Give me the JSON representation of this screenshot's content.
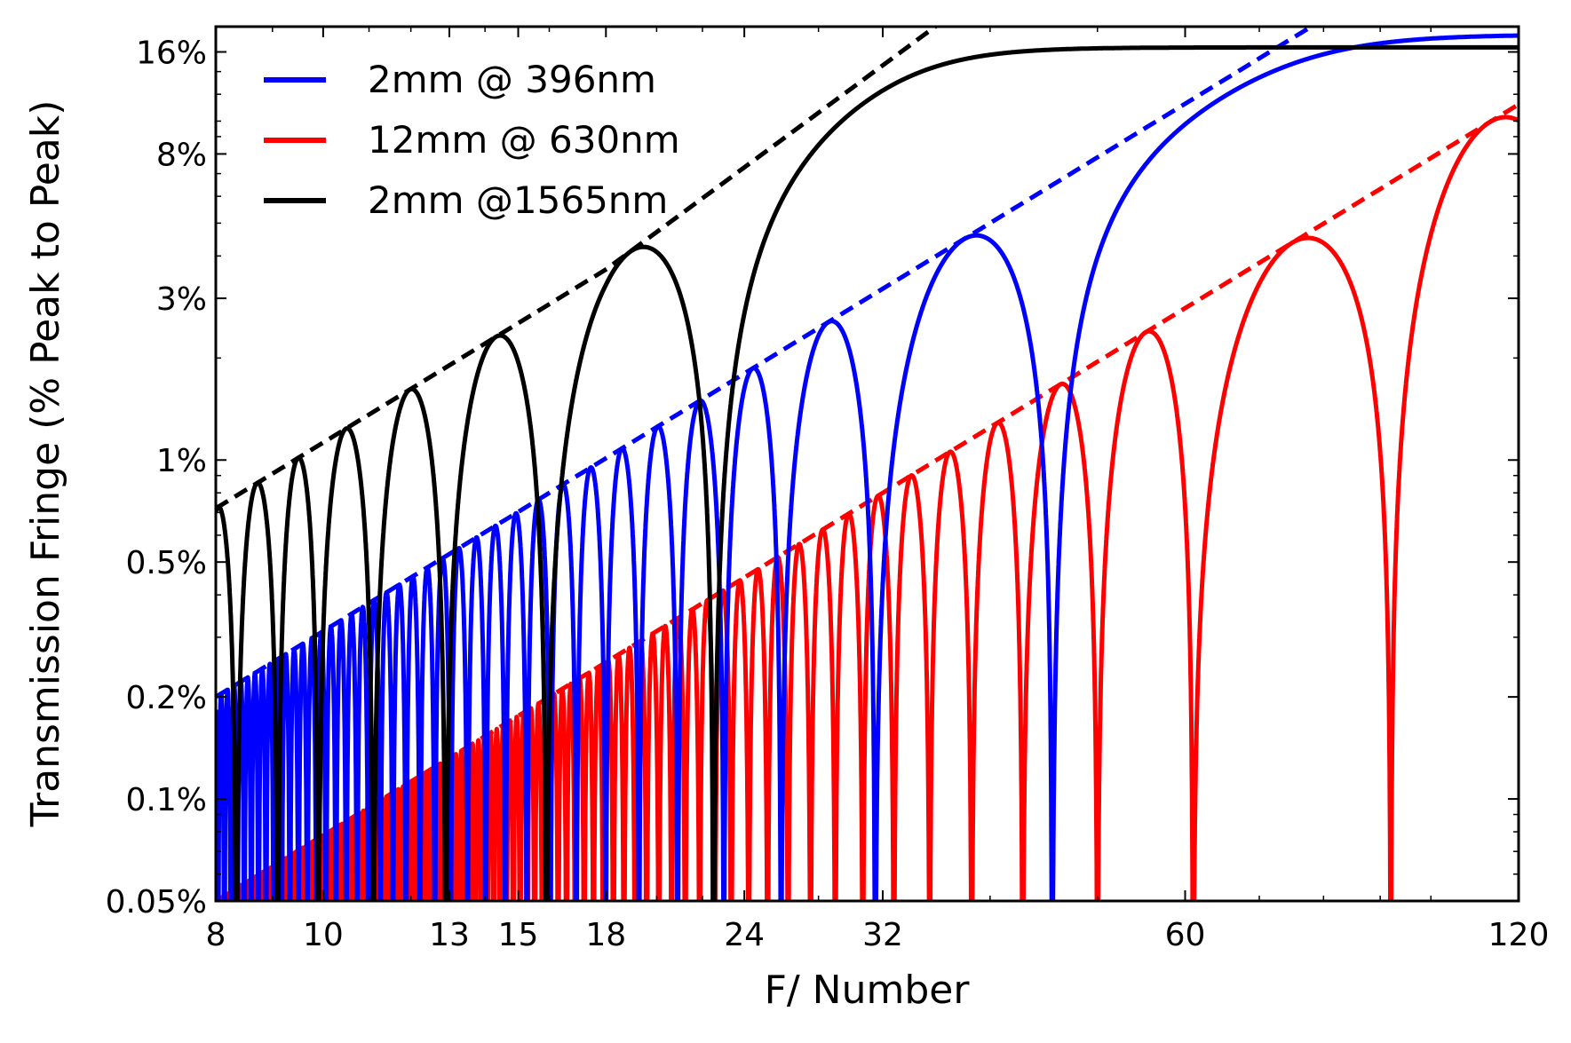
{
  "chart_data": {
    "type": "line",
    "title": "",
    "xlabel": "F/ Number",
    "ylabel": "Transmission Fringe (% Peak to Peak)",
    "x_scale": "log",
    "y_scale": "log",
    "xlim": [
      8,
      120
    ],
    "ylim": [
      0.05,
      19
    ],
    "x_ticks": [
      8,
      10,
      13,
      15,
      18,
      24,
      32,
      60,
      120
    ],
    "x_tick_labels": [
      "8",
      "10",
      "13",
      "15",
      "18",
      "24",
      "32",
      "60",
      "120"
    ],
    "y_ticks": [
      0.05,
      0.1,
      0.2,
      0.5,
      1,
      3,
      8,
      16
    ],
    "y_tick_labels": [
      "0.05%",
      "0.1%",
      "0.2%",
      "0.5%",
      "1%",
      "3%",
      "8%",
      "16%"
    ],
    "grid": false,
    "legend_position": "top-left",
    "series": [
      {
        "name": "2mm @ 396nm",
        "color": "#0000ff",
        "envelope_points": [
          [
            8,
            0.2
          ],
          [
            24,
            1.8
          ],
          [
            35,
            3.83
          ],
          [
            120,
            45
          ]
        ],
        "saturation_level": 18,
        "fringe_peaks": [
          [
            24,
            1.6
          ],
          [
            28.5,
            2.25
          ],
          [
            36,
            3.83
          ]
        ],
        "fringe_nulls": [
          23,
          25.9,
          31.5,
          45.5
        ]
      },
      {
        "name": "12mm @ 630nm",
        "color": "#ff0000",
        "envelope_points": [
          [
            8,
            0.05
          ],
          [
            32,
            0.8
          ],
          [
            120,
            11.2
          ]
        ],
        "fringe_peaks": [
          [
            44,
            1.5
          ],
          [
            57,
            2.25
          ],
          [
            77,
            3.8
          ],
          [
            120,
            11.2
          ]
        ],
        "fringe_nulls": [
          38.5,
          42.8,
          50,
          61,
          92
        ]
      },
      {
        "name": "2mm @1565nm",
        "color": "#000000",
        "envelope_points": [
          [
            8,
            0.72
          ],
          [
            18,
            3.65
          ],
          [
            30,
            12.5
          ]
        ],
        "saturation_level": 16.5,
        "fringe_peaks": [
          [
            8.7,
            0.8
          ],
          [
            9.5,
            0.95
          ],
          [
            10.5,
            1.15
          ],
          [
            12,
            1.45
          ],
          [
            14,
            2.1
          ],
          [
            18.3,
            3.65
          ]
        ],
        "fringe_nulls": [
          8.35,
          9.1,
          9.9,
          11.1,
          12.9,
          15.9,
          22.5
        ]
      }
    ]
  }
}
